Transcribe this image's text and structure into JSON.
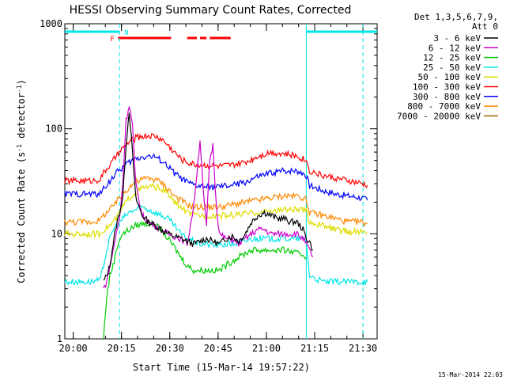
{
  "chart_data": {
    "type": "line",
    "title": "HESSI Observing Summary Count Rates, Corrected",
    "xlabel": "Start Time (15-Mar-14 19:57:22)",
    "ylabel_main": "Corrected Count Rate (s",
    "ylabel_exp1": "-1",
    "ylabel_mid": " detector",
    "ylabel_exp2": "-1",
    "ylabel_end": ")",
    "footer_date": "15-Mar-2014 22:03",
    "xlim_minutes": [
      0,
      97
    ],
    "ylim": [
      1,
      1000
    ],
    "yscale": "log",
    "x_ticks": [
      {
        "label": "20:00",
        "m": 2.6
      },
      {
        "label": "20:15",
        "m": 17.6
      },
      {
        "label": "20:30",
        "m": 32.6
      },
      {
        "label": "20:45",
        "m": 47.6
      },
      {
        "label": "21:00",
        "m": 62.6
      },
      {
        "label": "21:15",
        "m": 77.6
      },
      {
        "label": "21:30",
        "m": 92.6
      }
    ],
    "y_ticks": [
      {
        "label": "1",
        "v": 1
      },
      {
        "label": "10",
        "v": 10
      },
      {
        "label": "100",
        "v": 100
      },
      {
        "label": "1000",
        "v": 1000
      }
    ],
    "legend": {
      "header1": "Det 1,3,5,6,7,9,",
      "header2": "Att 0",
      "placement": "right"
    },
    "flag_labels": {
      "night": "N",
      "flare": "F"
    },
    "night_intervals": [
      [
        0,
        17
      ],
      [
        75,
        97
      ]
    ],
    "flare_intervals": [
      [
        16.5,
        33
      ],
      [
        38,
        41
      ],
      [
        42,
        44
      ],
      [
        45,
        51.5
      ]
    ],
    "dashed_verticals": [
      17,
      92.6
    ],
    "solid_verticals": [
      75
    ],
    "series": [
      {
        "name": "3 - 6 keV",
        "color": "#000000",
        "points": [
          [
            12,
            3.5
          ],
          [
            13,
            4
          ],
          [
            14,
            5
          ],
          [
            15,
            8
          ],
          [
            16,
            12
          ],
          [
            17,
            16
          ],
          [
            18,
            22
          ],
          [
            19,
            70
          ],
          [
            20,
            150
          ],
          [
            21,
            60
          ],
          [
            22,
            22
          ],
          [
            24,
            15
          ],
          [
            26,
            13
          ],
          [
            28,
            12
          ],
          [
            30,
            11
          ],
          [
            32,
            10
          ],
          [
            34,
            9.5
          ],
          [
            36,
            9
          ],
          [
            38,
            8.5
          ],
          [
            40,
            8
          ],
          [
            42,
            8.5
          ],
          [
            44,
            9
          ],
          [
            46,
            8.5
          ],
          [
            48,
            8
          ],
          [
            50,
            9
          ],
          [
            52,
            9.5
          ],
          [
            54,
            8.5
          ],
          [
            56,
            10
          ],
          [
            58,
            13
          ],
          [
            60,
            15
          ],
          [
            62,
            16
          ],
          [
            64,
            15
          ],
          [
            66,
            14
          ],
          [
            68,
            14
          ],
          [
            70,
            13
          ],
          [
            72,
            13
          ],
          [
            74,
            11
          ],
          [
            75,
            9
          ],
          [
            76,
            8.5
          ],
          [
            77,
            7
          ]
        ]
      },
      {
        "name": "6 - 12 keV",
        "color": "#cc00cc",
        "points": [
          [
            12,
            3
          ],
          [
            13,
            3.5
          ],
          [
            14,
            5
          ],
          [
            15,
            7
          ],
          [
            16,
            10
          ],
          [
            17,
            14
          ],
          [
            18,
            30
          ],
          [
            19,
            120
          ],
          [
            20,
            170
          ],
          [
            21,
            110
          ],
          [
            22,
            30
          ],
          [
            24,
            15
          ],
          [
            26,
            13
          ],
          [
            28,
            12
          ],
          [
            30,
            11
          ],
          [
            32,
            10
          ],
          [
            34,
            9.5
          ],
          [
            36,
            9
          ],
          [
            38,
            8
          ],
          [
            40,
            18
          ],
          [
            42,
            80
          ],
          [
            43,
            25
          ],
          [
            44,
            12
          ],
          [
            45,
            50
          ],
          [
            46,
            70
          ],
          [
            47,
            20
          ],
          [
            48,
            10
          ],
          [
            50,
            9
          ],
          [
            52,
            9
          ],
          [
            54,
            8
          ],
          [
            56,
            9
          ],
          [
            58,
            10
          ],
          [
            60,
            11
          ],
          [
            62,
            11
          ],
          [
            64,
            10
          ],
          [
            66,
            10
          ],
          [
            68,
            10
          ],
          [
            70,
            10
          ],
          [
            72,
            10
          ],
          [
            74,
            9
          ],
          [
            75,
            8
          ],
          [
            76,
            7
          ],
          [
            77,
            6
          ]
        ]
      },
      {
        "name": "12 - 25 keV",
        "color": "#00cc00",
        "points": [
          [
            12,
            1
          ],
          [
            13,
            2.5
          ],
          [
            14,
            4
          ],
          [
            15,
            5
          ],
          [
            16,
            7
          ],
          [
            17,
            9
          ],
          [
            18,
            10
          ],
          [
            20,
            11
          ],
          [
            22,
            12
          ],
          [
            24,
            12.5
          ],
          [
            26,
            12.5
          ],
          [
            28,
            12
          ],
          [
            30,
            11
          ],
          [
            32,
            9
          ],
          [
            34,
            7.5
          ],
          [
            36,
            6
          ],
          [
            38,
            5
          ],
          [
            40,
            4.5
          ],
          [
            42,
            4.5
          ],
          [
            44,
            4.5
          ],
          [
            46,
            4.5
          ],
          [
            48,
            4.5
          ],
          [
            50,
            5
          ],
          [
            52,
            5.5
          ],
          [
            54,
            6
          ],
          [
            56,
            6.5
          ],
          [
            58,
            7
          ],
          [
            60,
            7
          ],
          [
            62,
            7
          ],
          [
            64,
            7
          ],
          [
            66,
            7
          ],
          [
            68,
            7
          ],
          [
            70,
            6.8
          ],
          [
            72,
            6.5
          ],
          [
            74,
            6.3
          ],
          [
            75,
            6
          ]
        ]
      },
      {
        "name": "25 - 50 keV",
        "color": "#00e5e5",
        "points": [
          [
            0,
            3.5
          ],
          [
            4,
            3.5
          ],
          [
            8,
            3.5
          ],
          [
            11,
            3.6
          ],
          [
            12,
            5
          ],
          [
            13,
            7
          ],
          [
            14,
            9
          ],
          [
            15,
            11
          ],
          [
            16,
            12
          ],
          [
            18,
            14
          ],
          [
            20,
            16
          ],
          [
            22,
            17
          ],
          [
            24,
            18
          ],
          [
            26,
            17
          ],
          [
            28,
            16
          ],
          [
            30,
            15
          ],
          [
            32,
            14
          ],
          [
            34,
            12
          ],
          [
            36,
            10
          ],
          [
            38,
            9
          ],
          [
            40,
            8.5
          ],
          [
            42,
            8
          ],
          [
            44,
            8
          ],
          [
            46,
            7.8
          ],
          [
            48,
            7.8
          ],
          [
            50,
            8
          ],
          [
            52,
            8
          ],
          [
            54,
            8.2
          ],
          [
            56,
            8.5
          ],
          [
            58,
            9
          ],
          [
            60,
            9
          ],
          [
            62,
            9
          ],
          [
            64,
            9
          ],
          [
            66,
            9
          ],
          [
            68,
            9
          ],
          [
            70,
            9
          ],
          [
            72,
            9
          ],
          [
            74,
            9
          ],
          [
            75,
            8.5
          ],
          [
            76,
            4
          ],
          [
            80,
            3.5
          ],
          [
            84,
            3.5
          ],
          [
            88,
            3.5
          ],
          [
            92,
            3.5
          ],
          [
            94,
            3.5
          ]
        ]
      },
      {
        "name": "50 - 100 keV",
        "color": "#dddd00",
        "points": [
          [
            0,
            10
          ],
          [
            4,
            10
          ],
          [
            8,
            10
          ],
          [
            11,
            10
          ],
          [
            12,
            11
          ],
          [
            14,
            12
          ],
          [
            16,
            14
          ],
          [
            18,
            18
          ],
          [
            20,
            22
          ],
          [
            22,
            25
          ],
          [
            24,
            27
          ],
          [
            26,
            28
          ],
          [
            28,
            28
          ],
          [
            30,
            27
          ],
          [
            32,
            24
          ],
          [
            34,
            20
          ],
          [
            36,
            18
          ],
          [
            38,
            16
          ],
          [
            40,
            15
          ],
          [
            44,
            15
          ],
          [
            48,
            15
          ],
          [
            52,
            15
          ],
          [
            56,
            15.5
          ],
          [
            60,
            16
          ],
          [
            64,
            16.5
          ],
          [
            68,
            17
          ],
          [
            72,
            17
          ],
          [
            75,
            16.5
          ],
          [
            76,
            13
          ],
          [
            80,
            12
          ],
          [
            84,
            11
          ],
          [
            88,
            10.5
          ],
          [
            92,
            10.5
          ],
          [
            94,
            10
          ]
        ]
      },
      {
        "name": "100 - 300 keV",
        "color": "#ff0000",
        "points": [
          [
            0,
            32
          ],
          [
            4,
            32
          ],
          [
            8,
            32
          ],
          [
            11,
            33
          ],
          [
            12,
            38
          ],
          [
            14,
            45
          ],
          [
            16,
            55
          ],
          [
            18,
            65
          ],
          [
            20,
            75
          ],
          [
            22,
            82
          ],
          [
            24,
            85
          ],
          [
            26,
            86
          ],
          [
            28,
            85
          ],
          [
            30,
            80
          ],
          [
            32,
            70
          ],
          [
            34,
            60
          ],
          [
            36,
            52
          ],
          [
            38,
            48
          ],
          [
            40,
            46
          ],
          [
            44,
            45
          ],
          [
            48,
            44
          ],
          [
            52,
            45
          ],
          [
            56,
            48
          ],
          [
            60,
            55
          ],
          [
            64,
            60
          ],
          [
            68,
            58
          ],
          [
            72,
            55
          ],
          [
            74,
            52
          ],
          [
            75,
            50
          ],
          [
            76,
            40
          ],
          [
            80,
            36
          ],
          [
            84,
            34
          ],
          [
            88,
            32
          ],
          [
            92,
            30
          ],
          [
            94,
            29
          ]
        ]
      },
      {
        "name": "300 - 800 keV",
        "color": "#0000ff",
        "points": [
          [
            0,
            24
          ],
          [
            4,
            24
          ],
          [
            8,
            24
          ],
          [
            11,
            24
          ],
          [
            12,
            27
          ],
          [
            14,
            32
          ],
          [
            16,
            38
          ],
          [
            18,
            43
          ],
          [
            20,
            48
          ],
          [
            22,
            52
          ],
          [
            24,
            54
          ],
          [
            26,
            55
          ],
          [
            28,
            54
          ],
          [
            30,
            50
          ],
          [
            32,
            44
          ],
          [
            34,
            38
          ],
          [
            36,
            34
          ],
          [
            38,
            31
          ],
          [
            40,
            29
          ],
          [
            44,
            28
          ],
          [
            48,
            28
          ],
          [
            52,
            29
          ],
          [
            56,
            31
          ],
          [
            60,
            35
          ],
          [
            64,
            38
          ],
          [
            68,
            40
          ],
          [
            72,
            40
          ],
          [
            74,
            38
          ],
          [
            75,
            36
          ],
          [
            76,
            29
          ],
          [
            80,
            26
          ],
          [
            84,
            24
          ],
          [
            88,
            23
          ],
          [
            92,
            22
          ],
          [
            94,
            21
          ]
        ]
      },
      {
        "name": "800 - 7000 keV",
        "color": "#ff8800",
        "points": [
          [
            0,
            13
          ],
          [
            4,
            13
          ],
          [
            8,
            13
          ],
          [
            11,
            13.5
          ],
          [
            12,
            15
          ],
          [
            14,
            17
          ],
          [
            16,
            20
          ],
          [
            18,
            24
          ],
          [
            20,
            28
          ],
          [
            22,
            31
          ],
          [
            24,
            33
          ],
          [
            26,
            34
          ],
          [
            28,
            33
          ],
          [
            30,
            31
          ],
          [
            32,
            27
          ],
          [
            34,
            23
          ],
          [
            36,
            21
          ],
          [
            38,
            19
          ],
          [
            40,
            18
          ],
          [
            44,
            18
          ],
          [
            48,
            18
          ],
          [
            52,
            19
          ],
          [
            56,
            20
          ],
          [
            60,
            21
          ],
          [
            64,
            22
          ],
          [
            68,
            23
          ],
          [
            72,
            23
          ],
          [
            74,
            22
          ],
          [
            75,
            21
          ],
          [
            76,
            16
          ],
          [
            80,
            15
          ],
          [
            84,
            14
          ],
          [
            88,
            13
          ],
          [
            92,
            13
          ],
          [
            94,
            12.5
          ]
        ]
      },
      {
        "name": "7000 - 20000 keV",
        "color": "#996600",
        "points": []
      }
    ]
  }
}
